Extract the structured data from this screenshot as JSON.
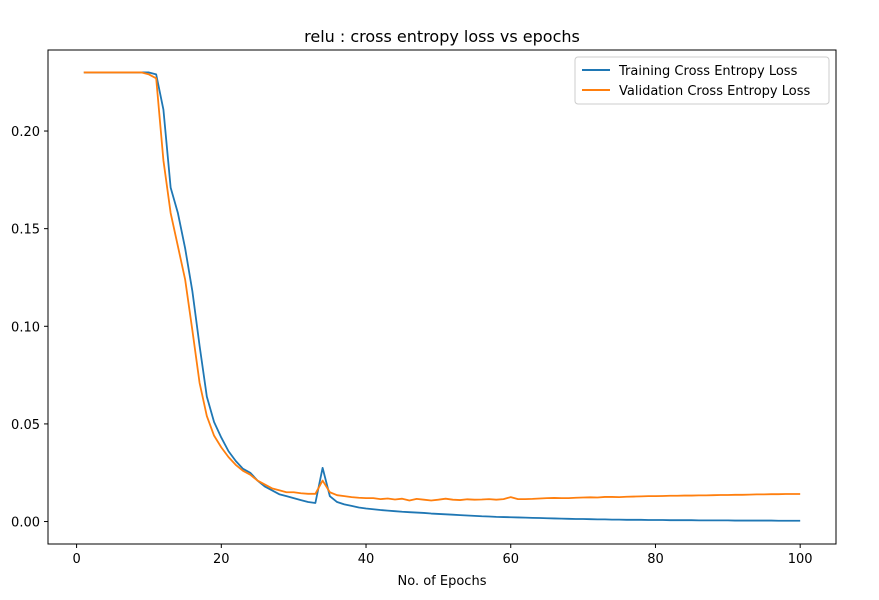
{
  "chart_data": {
    "type": "line",
    "title": "relu : cross entropy loss vs epochs",
    "xlabel": "No. of Epochs",
    "ylabel": "",
    "xlim": [
      -3.95,
      104.95
    ],
    "ylim": [
      -0.0115,
      0.2415
    ],
    "xticks": [
      0,
      20,
      40,
      60,
      80,
      100
    ],
    "xtick_labels": [
      "0",
      "20",
      "40",
      "60",
      "80",
      "100"
    ],
    "yticks": [
      0.0,
      0.05,
      0.1,
      0.15,
      0.2
    ],
    "ytick_labels": [
      "0.00",
      "0.05",
      "0.10",
      "0.15",
      "0.20"
    ],
    "grid": false,
    "legend_position": "top-right",
    "x": [
      1,
      2,
      3,
      4,
      5,
      6,
      7,
      8,
      9,
      10,
      11,
      12,
      13,
      14,
      15,
      16,
      17,
      18,
      19,
      20,
      21,
      22,
      23,
      24,
      25,
      26,
      27,
      28,
      29,
      30,
      31,
      32,
      33,
      34,
      35,
      36,
      37,
      38,
      39,
      40,
      41,
      42,
      43,
      44,
      45,
      46,
      47,
      48,
      49,
      50,
      51,
      52,
      53,
      54,
      55,
      56,
      57,
      58,
      59,
      60,
      61,
      62,
      63,
      64,
      65,
      66,
      67,
      68,
      69,
      70,
      71,
      72,
      73,
      74,
      75,
      76,
      77,
      78,
      79,
      80,
      81,
      82,
      83,
      84,
      85,
      86,
      87,
      88,
      89,
      90,
      91,
      92,
      93,
      94,
      95,
      96,
      97,
      98,
      99,
      100
    ],
    "series": [
      {
        "name": "Training Cross Entropy Loss",
        "color": "#1f77b4",
        "values": [
          0.23,
          0.23,
          0.23,
          0.23,
          0.23,
          0.23,
          0.23,
          0.23,
          0.23,
          0.23,
          0.229,
          0.211,
          0.171,
          0.158,
          0.14,
          0.118,
          0.09,
          0.064,
          0.051,
          0.043,
          0.036,
          0.031,
          0.027,
          0.025,
          0.021,
          0.018,
          0.016,
          0.014,
          0.013,
          0.012,
          0.011,
          0.01,
          0.0095,
          0.0275,
          0.013,
          0.01,
          0.0088,
          0.008,
          0.0072,
          0.0067,
          0.0063,
          0.0059,
          0.0056,
          0.0053,
          0.005,
          0.0048,
          0.0046,
          0.0044,
          0.0041,
          0.0039,
          0.0037,
          0.0035,
          0.0033,
          0.0031,
          0.0029,
          0.0027,
          0.0026,
          0.0024,
          0.0023,
          0.0022,
          0.0021,
          0.002,
          0.0019,
          0.0018,
          0.0017,
          0.0016,
          0.0015,
          0.0014,
          0.0013,
          0.0013,
          0.0012,
          0.0011,
          0.0011,
          0.001,
          0.001,
          0.0009,
          0.0009,
          0.0009,
          0.0008,
          0.0008,
          0.0008,
          0.0007,
          0.0007,
          0.0007,
          0.0007,
          0.0006,
          0.0006,
          0.0006,
          0.0006,
          0.0006,
          0.0005,
          0.0005,
          0.0005,
          0.0005,
          0.0005,
          0.0005,
          0.0004,
          0.0004,
          0.0004,
          0.0004
        ]
      },
      {
        "name": "Validation Cross Entropy Loss",
        "color": "#ff7f0e",
        "values": [
          0.23,
          0.23,
          0.23,
          0.23,
          0.23,
          0.23,
          0.23,
          0.23,
          0.23,
          0.229,
          0.227,
          0.185,
          0.158,
          0.141,
          0.124,
          0.098,
          0.071,
          0.054,
          0.044,
          0.038,
          0.033,
          0.029,
          0.026,
          0.024,
          0.021,
          0.019,
          0.017,
          0.016,
          0.015,
          0.015,
          0.0145,
          0.0142,
          0.0142,
          0.021,
          0.015,
          0.0135,
          0.013,
          0.0125,
          0.0122,
          0.012,
          0.012,
          0.0115,
          0.0118,
          0.0113,
          0.0117,
          0.0108,
          0.0116,
          0.0112,
          0.0108,
          0.0112,
          0.0117,
          0.0112,
          0.011,
          0.0114,
          0.0112,
          0.0113,
          0.0115,
          0.0112,
          0.0115,
          0.0125,
          0.0115,
          0.0115,
          0.0116,
          0.0118,
          0.012,
          0.0121,
          0.012,
          0.012,
          0.0122,
          0.0123,
          0.0124,
          0.0123,
          0.0126,
          0.0126,
          0.0125,
          0.0127,
          0.0128,
          0.0129,
          0.013,
          0.013,
          0.0131,
          0.0132,
          0.0132,
          0.0133,
          0.0133,
          0.0134,
          0.0134,
          0.0135,
          0.0136,
          0.0136,
          0.0137,
          0.0137,
          0.0138,
          0.0139,
          0.0139,
          0.014,
          0.014,
          0.0141,
          0.0141,
          0.0141
        ]
      }
    ]
  }
}
